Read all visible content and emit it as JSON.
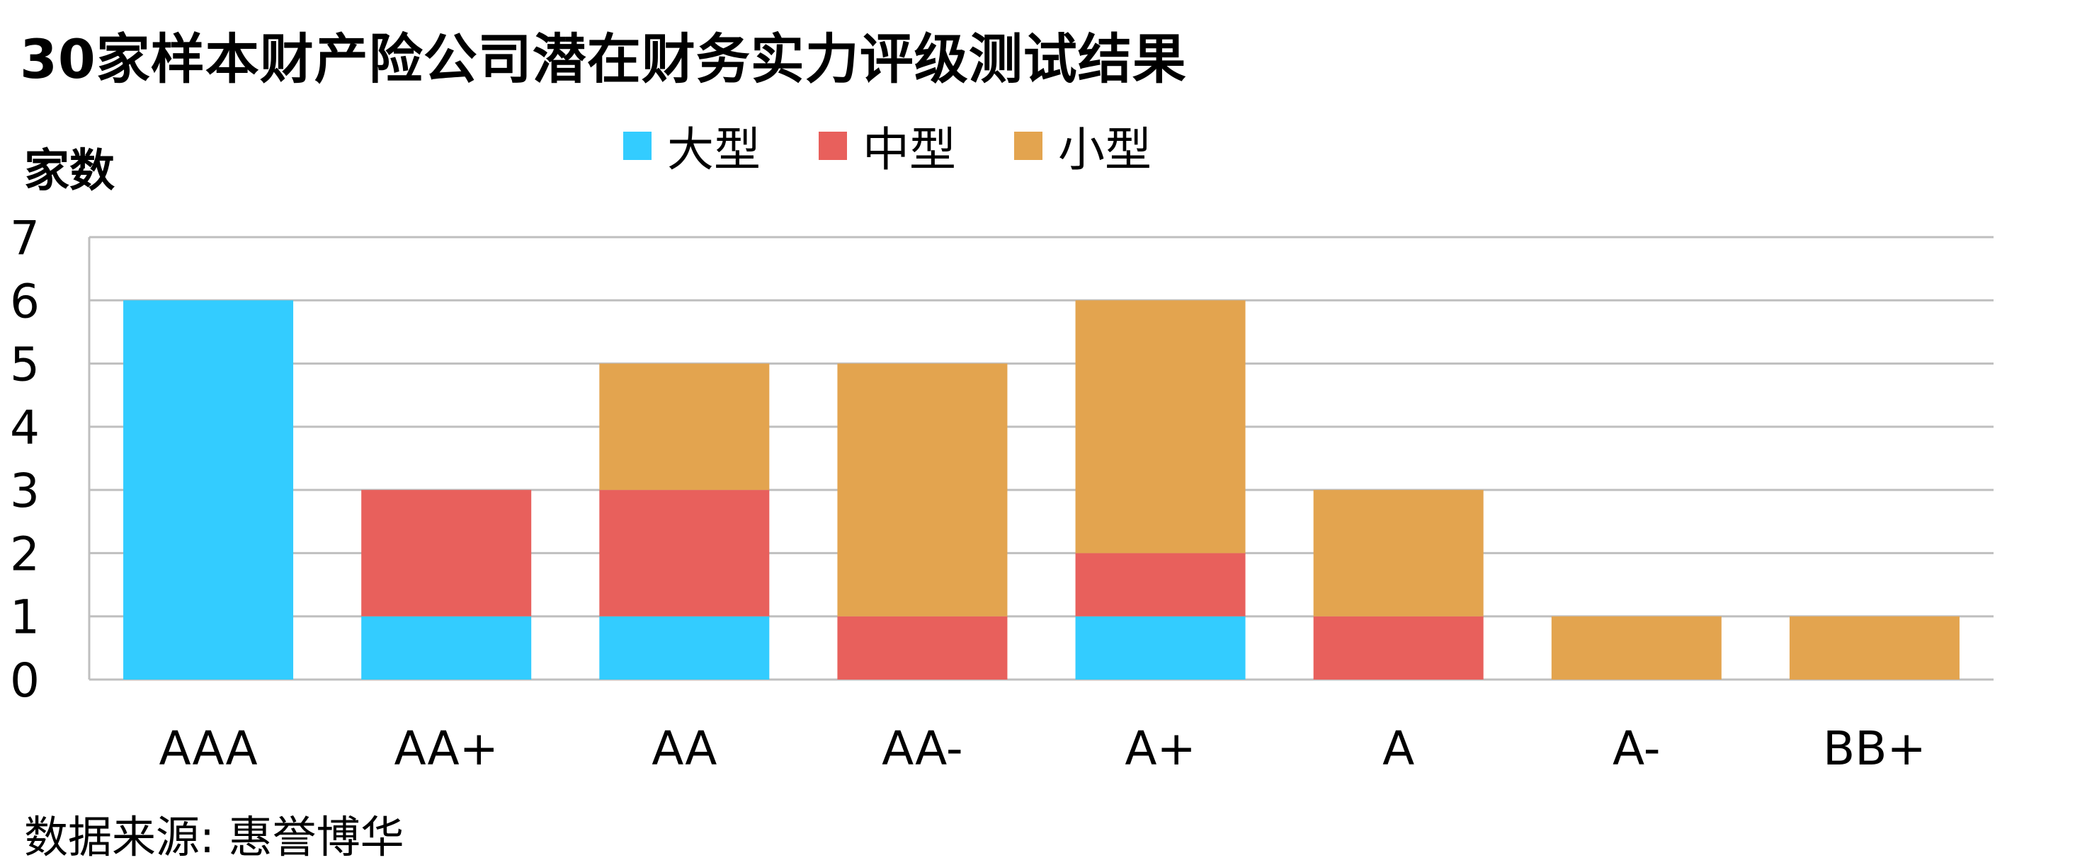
{
  "title": "30家样本财产险公司潜在财务实力评级测试结果",
  "source_note": "数据来源: 惠誉博华",
  "colors": {
    "large": "#33CCFF",
    "medium": "#E8605C",
    "small": "#E3A44F",
    "grid": "#BFBFBF"
  },
  "chart_data": {
    "type": "bar",
    "stacked": true,
    "title": "30家样本财产险公司潜在财务实力评级测试结果",
    "xlabel": "",
    "ylabel": "家数",
    "ylim": [
      0,
      7
    ],
    "yticks": [
      0,
      1,
      2,
      3,
      4,
      5,
      6,
      7
    ],
    "grid": true,
    "legend_position": "top",
    "categories": [
      "AAA",
      "AA+",
      "AA",
      "AA-",
      "A+",
      "A",
      "A-",
      "BB+"
    ],
    "series": [
      {
        "name": "大型",
        "color": "#33CCFF",
        "values": [
          6,
          1,
          1,
          0,
          1,
          0,
          0,
          0
        ]
      },
      {
        "name": "中型",
        "color": "#E8605C",
        "values": [
          0,
          2,
          2,
          1,
          1,
          1,
          0,
          0
        ]
      },
      {
        "name": "小型",
        "color": "#E3A44F",
        "values": [
          0,
          0,
          2,
          4,
          4,
          2,
          1,
          1
        ]
      }
    ]
  }
}
